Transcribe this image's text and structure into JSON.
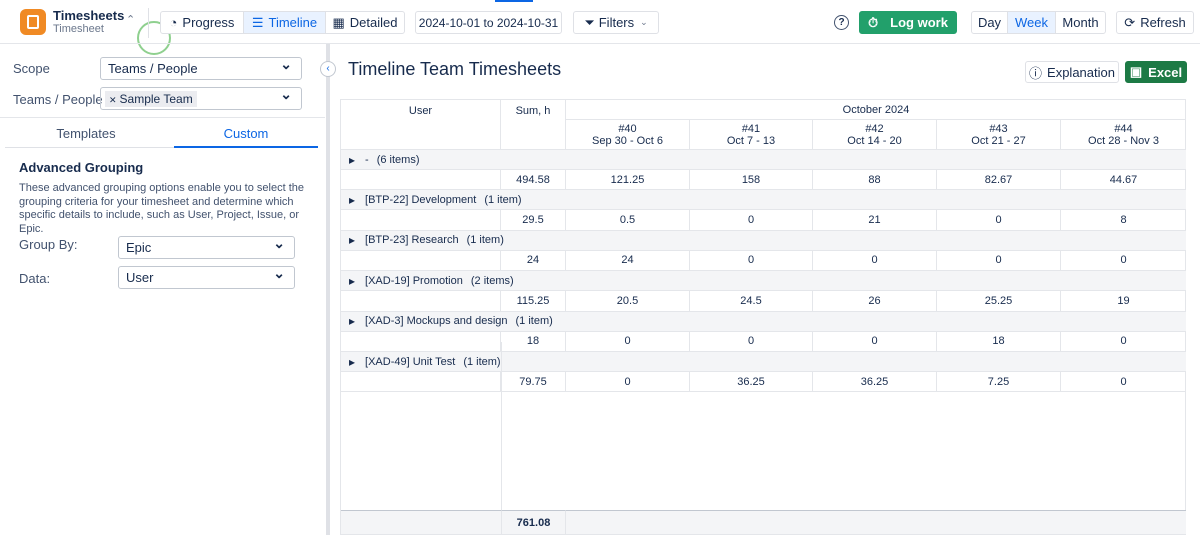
{
  "app": {
    "name": "Timesheets",
    "subtitle": "Timesheet"
  },
  "toolbar": {
    "views": [
      "Progress",
      "Timeline",
      "Detailed"
    ],
    "date_range": "2024-10-01 to 2024-10-31",
    "filters": "Filters",
    "log_work": "Log work",
    "periods": [
      "Day",
      "Week",
      "Month"
    ],
    "refresh": "Refresh"
  },
  "sidebar": {
    "scope_label": "Scope",
    "scope_value": "Teams / People",
    "teams_label": "Teams / People",
    "team_tag": "Sample Team",
    "tabs": [
      "Templates",
      "Custom"
    ],
    "section_title": "Advanced Grouping",
    "description": "These advanced grouping options enable you to select the grouping criteria for your timesheet and determine which specific details to include, such as User, Project, Issue, or Epic.",
    "group_by_label": "Group By:",
    "group_by_value": "Epic",
    "data_label": "Data:",
    "data_value": "User"
  },
  "main": {
    "title": "Timeline Team Timesheets",
    "explanation": "Explanation",
    "excel": "Excel",
    "table": {
      "header": {
        "user": "User",
        "sum": "Sum, h",
        "month": "October 2024",
        "weeks": [
          {
            "number": "#40",
            "range": "Sep 30 - Oct 6"
          },
          {
            "number": "#41",
            "range": "Oct 7 - 13"
          },
          {
            "number": "#42",
            "range": "Oct 14 - 20"
          },
          {
            "number": "#43",
            "range": "Oct 21 - 27"
          },
          {
            "number": "#44",
            "range": "Oct 28 - Nov 3"
          }
        ]
      },
      "groups": [
        {
          "name": "-",
          "count": "(6 items)",
          "sum": 494.58,
          "values": [
            121.25,
            158,
            88,
            82.67,
            44.67
          ]
        },
        {
          "name": "[BTP-22] Development",
          "count": "(1 item)",
          "sum": 29.5,
          "values": [
            0.5,
            0,
            21,
            0,
            8
          ]
        },
        {
          "name": "[BTP-23] Research",
          "count": "(1 item)",
          "sum": 24,
          "values": [
            24,
            0,
            0,
            0,
            0
          ]
        },
        {
          "name": "[XAD-19] Promotion",
          "count": "(2 items)",
          "sum": 115.25,
          "values": [
            20.5,
            24.5,
            26,
            25.25,
            19
          ]
        },
        {
          "name": "[XAD-3] Mockups and design",
          "count": "(1 item)",
          "sum": 18,
          "values": [
            0,
            0,
            0,
            18,
            0
          ]
        },
        {
          "name": "[XAD-49] Unit Test",
          "count": "(1 item)",
          "sum": 79.75,
          "values": [
            0,
            36.25,
            36.25,
            7.25,
            0
          ]
        }
      ],
      "total": 761.08
    }
  }
}
